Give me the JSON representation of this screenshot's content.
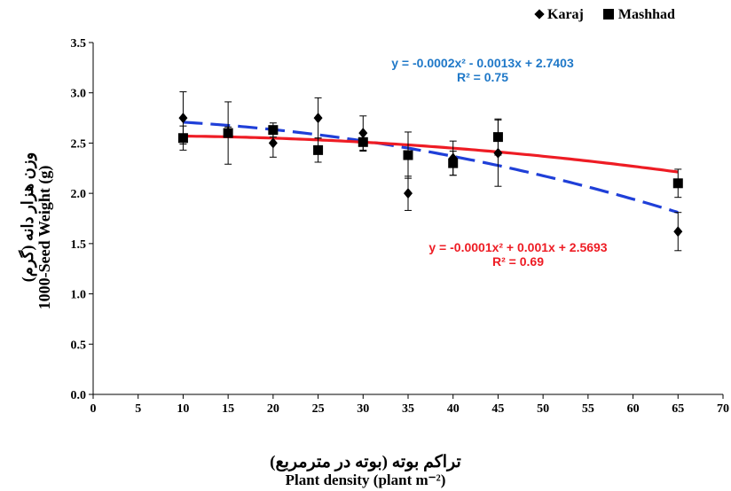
{
  "chart_data": {
    "type": "scatter",
    "xlabel_fa": "تراکم بوته (بوته در مترمربع)",
    "xlabel": "Plant density (plant m⁻²)",
    "ylabel_fa": "وزن هزار دانه (گرم)",
    "ylabel": "1000-Seed Weight  (g)",
    "xlim": [
      0,
      70
    ],
    "ylim": [
      0,
      3.5
    ],
    "x_ticks": [
      "0",
      "5",
      "10",
      "15",
      "20",
      "25",
      "30",
      "35",
      "40",
      "45",
      "50",
      "55",
      "60",
      "65",
      "70"
    ],
    "y_ticks": [
      "0.0",
      "0.5",
      "1.0",
      "1.5",
      "2.0",
      "2.5",
      "3.0",
      "3.5"
    ],
    "legend_position": "top-right",
    "grid": false,
    "series": [
      {
        "name": "Karaj",
        "marker": "diamond",
        "x": [
          10,
          15,
          20,
          25,
          30,
          35,
          40,
          45,
          65
        ],
        "y": [
          2.75,
          2.61,
          2.5,
          2.75,
          2.6,
          2.0,
          2.35,
          2.4,
          1.62
        ],
        "error": [
          0.26,
          0.05,
          0.14,
          0.2,
          0.17,
          0.17,
          0.17,
          0.33,
          0.19
        ],
        "trendline": {
          "equation": "y = -0.0002x² - 0.0013x + 2.7403",
          "r2": "R² = 0.75",
          "coefficients": [
            -0.0002,
            -0.0013,
            2.7403
          ],
          "color": "#1f3fd8",
          "style": "dashed"
        }
      },
      {
        "name": "Mashhad",
        "marker": "square",
        "x": [
          10,
          15,
          20,
          25,
          30,
          35,
          40,
          45,
          65
        ],
        "y": [
          2.55,
          2.6,
          2.63,
          2.43,
          2.51,
          2.38,
          2.3,
          2.56,
          2.1
        ],
        "error": [
          0.12,
          0.31,
          0.07,
          0.12,
          0.09,
          0.23,
          0.12,
          0.18,
          0.14
        ],
        "trendline": {
          "equation": "y = -0.0001x² + 0.001x + 2.5693",
          "r2": "R² = 0.69",
          "coefficients": [
            -0.0001,
            0.001,
            2.5693
          ],
          "color": "#ee1c24",
          "style": "solid"
        }
      }
    ]
  }
}
